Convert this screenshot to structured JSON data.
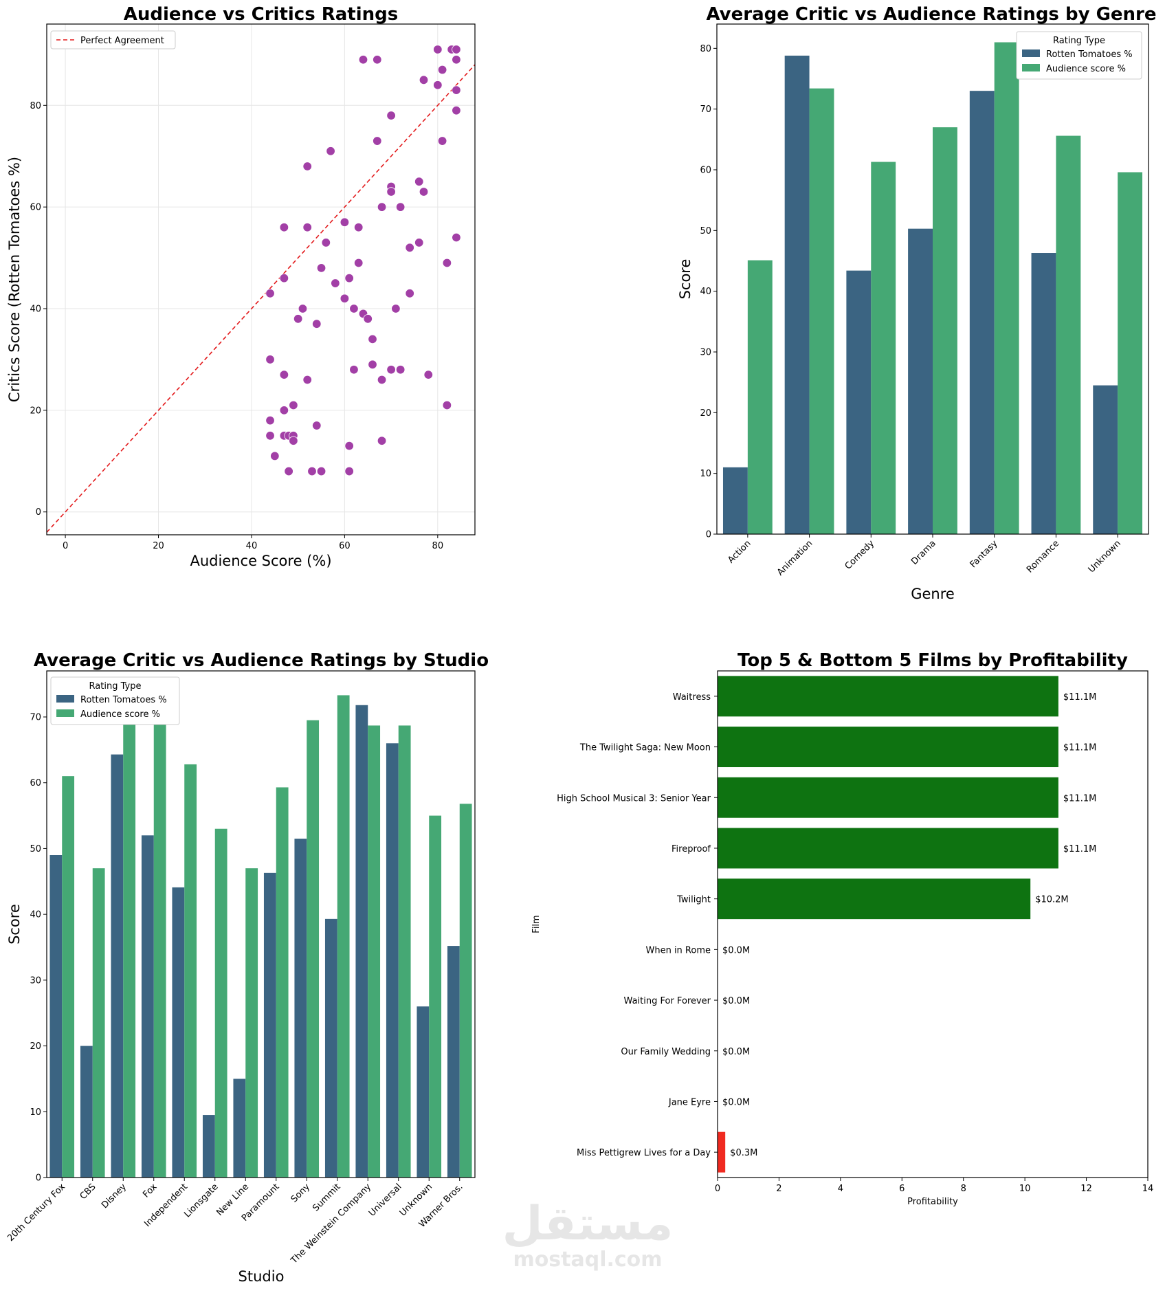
{
  "colors": {
    "scatter_point": "#a23fa6",
    "agreement_line": "#e31a1c",
    "rotten": "#3b6482",
    "audience": "#45a874",
    "top_bar": "#0e7311",
    "bottom_bar": "#f02a20",
    "grid": "#e6e6e6"
  },
  "watermark": {
    "logo_text": "مستقل",
    "url_text": "mostaql.com"
  },
  "chart_data": [
    {
      "type": "scatter",
      "title": "Audience vs Critics Ratings",
      "xlabel": "Audience Score (%)",
      "ylabel": "Critics Score (Rotten Tomatoes %)",
      "xlim": [
        -4,
        88
      ],
      "ylim": [
        -4.5,
        96
      ],
      "xticks": [
        0,
        20,
        40,
        60,
        80
      ],
      "yticks": [
        0,
        20,
        40,
        60,
        80
      ],
      "grid": true,
      "legend": {
        "entries": [
          "Perfect Agreement"
        ],
        "placement": "top-left"
      },
      "reference_line": {
        "name": "Perfect Agreement",
        "slope": 1,
        "intercept": 0
      },
      "points": [
        [
          64,
          89
        ],
        [
          67,
          89
        ],
        [
          80,
          91
        ],
        [
          83,
          91
        ],
        [
          84,
          91
        ],
        [
          84,
          89
        ],
        [
          81,
          87
        ],
        [
          77,
          85
        ],
        [
          80,
          84
        ],
        [
          84,
          83
        ],
        [
          84,
          79
        ],
        [
          70,
          78
        ],
        [
          67,
          73
        ],
        [
          81,
          73
        ],
        [
          57,
          71
        ],
        [
          52,
          68
        ],
        [
          76,
          65
        ],
        [
          70,
          64
        ],
        [
          70,
          63
        ],
        [
          77,
          63
        ],
        [
          68,
          60
        ],
        [
          72,
          60
        ],
        [
          60,
          57
        ],
        [
          47,
          56
        ],
        [
          52,
          56
        ],
        [
          63,
          56
        ],
        [
          84,
          54
        ],
        [
          56,
          53
        ],
        [
          76,
          53
        ],
        [
          74,
          52
        ],
        [
          63,
          49
        ],
        [
          82,
          49
        ],
        [
          55,
          48
        ],
        [
          47,
          46
        ],
        [
          61,
          46
        ],
        [
          58,
          45
        ],
        [
          44,
          43
        ],
        [
          74,
          43
        ],
        [
          60,
          42
        ],
        [
          51,
          40
        ],
        [
          62,
          40
        ],
        [
          71,
          40
        ],
        [
          64,
          39
        ],
        [
          50,
          38
        ],
        [
          65,
          38
        ],
        [
          54,
          37
        ],
        [
          66,
          34
        ],
        [
          44,
          30
        ],
        [
          66,
          29
        ],
        [
          62,
          28
        ],
        [
          70,
          28
        ],
        [
          72,
          28
        ],
        [
          47,
          27
        ],
        [
          78,
          27
        ],
        [
          52,
          26
        ],
        [
          68,
          26
        ],
        [
          49,
          21
        ],
        [
          82,
          21
        ],
        [
          47,
          20
        ],
        [
          44,
          18
        ],
        [
          54,
          17
        ],
        [
          44,
          15
        ],
        [
          47,
          15
        ],
        [
          48,
          15
        ],
        [
          49,
          15
        ],
        [
          49,
          14
        ],
        [
          68,
          14
        ],
        [
          61,
          13
        ],
        [
          45,
          11
        ],
        [
          48,
          8
        ],
        [
          53,
          8
        ],
        [
          55,
          8
        ],
        [
          61,
          8
        ]
      ]
    },
    {
      "type": "bar",
      "title": "Average Critic vs Audience Ratings by Genre",
      "xlabel": "Genre",
      "ylabel": "Score",
      "ylim": [
        0,
        84
      ],
      "yticks": [
        0,
        10,
        20,
        30,
        40,
        50,
        60,
        70,
        80
      ],
      "categories": [
        "Action",
        "Animation",
        "Comedy",
        "Drama",
        "Fantasy",
        "Romance",
        "Unknown"
      ],
      "legend": {
        "title": "Rating Type",
        "placement": "top-right"
      },
      "series": [
        {
          "name": "Rotten Tomatoes %",
          "values": [
            11.0,
            78.8,
            43.4,
            50.3,
            73.0,
            46.3,
            24.5
          ]
        },
        {
          "name": "Audience score %",
          "values": [
            45.1,
            73.4,
            61.3,
            67.0,
            81.0,
            65.6,
            59.6
          ]
        }
      ]
    },
    {
      "type": "bar",
      "title": "Average Critic vs Audience Ratings by Studio",
      "xlabel": "Studio",
      "ylabel": "Score",
      "ylim": [
        0,
        77
      ],
      "yticks": [
        0,
        10,
        20,
        30,
        40,
        50,
        60,
        70
      ],
      "categories": [
        "20th Century Fox",
        "CBS",
        "Disney",
        "Fox",
        "Independent",
        "Lionsgate",
        "New Line",
        "Paramount",
        "Sony",
        "Summit",
        "The Weinstein Company",
        "Universal",
        "Unknown",
        "Warner Bros."
      ],
      "legend": {
        "title": "Rating Type",
        "placement": "top-left"
      },
      "series": [
        {
          "name": "Rotten Tomatoes %",
          "values": [
            49.0,
            20.0,
            64.3,
            52.0,
            44.1,
            9.5,
            15.0,
            46.3,
            51.5,
            39.3,
            71.8,
            66.0,
            26.0,
            35.2
          ]
        },
        {
          "name": "Audience score %",
          "values": [
            61.0,
            47.0,
            71.0,
            71.0,
            62.8,
            53.0,
            47.0,
            59.3,
            69.5,
            73.3,
            68.7,
            68.7,
            55.0,
            56.8
          ]
        }
      ]
    },
    {
      "type": "bar",
      "orientation": "horizontal",
      "title": "Top 5 & Bottom 5 Films by Profitability",
      "xlabel": "Profitability",
      "ylabel": "Film",
      "xlim": [
        0,
        14
      ],
      "xticks": [
        0,
        2,
        4,
        6,
        8,
        10,
        12,
        14
      ],
      "categories": [
        "Waitress",
        "The Twilight Saga: New Moon",
        "High School Musical 3: Senior Year",
        "Fireproof",
        "Twilight",
        "When in Rome",
        "Waiting For Forever",
        "Our Family Wedding",
        "Jane Eyre",
        "Miss Pettigrew Lives for a Day"
      ],
      "values": [
        11.09,
        11.09,
        11.09,
        11.09,
        10.18,
        0.0,
        0.0,
        0.0,
        0.0,
        0.25
      ],
      "labels": [
        "$11.1M",
        "$11.1M",
        "$11.1M",
        "$11.1M",
        "$10.2M",
        "$0.0M",
        "$0.0M",
        "$0.0M",
        "$0.0M",
        "$0.3M"
      ],
      "groups": [
        "top",
        "top",
        "top",
        "top",
        "top",
        "bottom",
        "bottom",
        "bottom",
        "bottom",
        "bottom"
      ]
    }
  ]
}
